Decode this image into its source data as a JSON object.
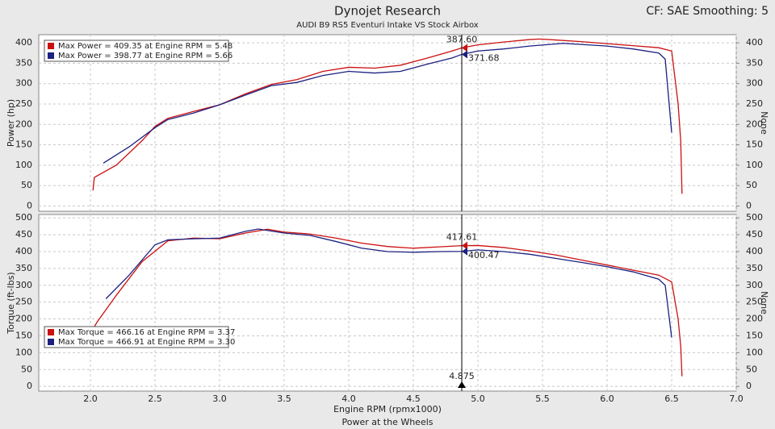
{
  "header": {
    "title": "Dynojet Research",
    "subtitle": "AUDI B9 RS5 Eventuri Intake VS Stock Airbox",
    "corner": "CF: SAE Smoothing: 5"
  },
  "x_label": "Engine RPM (rpmx1000)",
  "footer": "Power at the Wheels",
  "cursor_x": {
    "value": 4.875,
    "label": "4.875"
  },
  "chart_data": [
    {
      "type": "line",
      "ylabel": "Power (hp)",
      "y2label": "None",
      "legend": "upper left",
      "ylim": [
        -13,
        420
      ],
      "yticks": [
        0,
        50,
        100,
        150,
        200,
        250,
        300,
        350,
        400
      ],
      "y2lim": [
        -13,
        420
      ],
      "y2ticks": [
        0,
        50,
        100,
        150,
        200,
        250,
        300,
        350,
        400
      ],
      "grid": true,
      "series": [
        {
          "name": "Max Power = 409.35 at Engine RPM = 5.48",
          "color": "#cc1010",
          "x": [
            2.02,
            2.03,
            2.2,
            2.4,
            2.5,
            2.6,
            2.8,
            3.0,
            3.2,
            3.4,
            3.6,
            3.8,
            4.0,
            4.2,
            4.4,
            4.6,
            4.8,
            4.875,
            5.0,
            5.2,
            5.4,
            5.48,
            5.6,
            5.8,
            6.0,
            6.2,
            6.4,
            6.5,
            6.55,
            6.57,
            6.58
          ],
          "values": [
            38,
            70,
            100,
            160,
            195,
            215,
            232,
            248,
            275,
            298,
            310,
            330,
            340,
            338,
            345,
            362,
            380,
            387.6,
            395,
            402,
            408,
            409.35,
            407,
            403,
            398,
            393,
            388,
            380,
            250,
            160,
            30
          ]
        },
        {
          "name": "Max Power = 398.77 at Engine RPM = 5.66",
          "color": "#1c2080",
          "x": [
            2.1,
            2.3,
            2.5,
            2.6,
            2.8,
            3.0,
            3.2,
            3.4,
            3.6,
            3.8,
            4.0,
            4.2,
            4.4,
            4.6,
            4.8,
            4.875,
            5.0,
            5.2,
            5.4,
            5.66,
            5.8,
            6.0,
            6.2,
            6.4,
            6.45,
            6.5
          ],
          "values": [
            105,
            145,
            192,
            212,
            228,
            248,
            272,
            295,
            303,
            320,
            330,
            326,
            330,
            347,
            363,
            371.68,
            380,
            385,
            392,
            398.77,
            396,
            392,
            385,
            375,
            360,
            180
          ]
        }
      ],
      "cursor": [
        {
          "value": 387.6,
          "label": "387.60"
        },
        {
          "value": 371.68,
          "label": "371.68"
        }
      ]
    },
    {
      "type": "line",
      "ylabel": "Torque (ft-lbs)",
      "y2label": "None",
      "legend": "lower left",
      "xlim": [
        1.6,
        7.0
      ],
      "xticks": [
        {
          "value": 2,
          "label": "2.0"
        },
        {
          "value": 2.5,
          "label": "2.5"
        },
        {
          "value": 3,
          "label": "3.0"
        },
        {
          "value": 3.5,
          "label": "3.5"
        },
        {
          "value": 4,
          "label": "4.0"
        },
        {
          "value": 4.5,
          "label": "4.5"
        },
        {
          "value": 5,
          "label": "5.0"
        },
        {
          "value": 5.5,
          "label": "5.5"
        },
        {
          "value": 6,
          "label": "6.0"
        },
        {
          "value": 6.5,
          "label": "6.5"
        },
        {
          "value": 7,
          "label": "7.0"
        }
      ],
      "ylim": [
        -14,
        510
      ],
      "yticks": [
        0,
        50,
        100,
        150,
        200,
        250,
        300,
        350,
        400,
        450,
        500
      ],
      "y2lim": [
        -14,
        510
      ],
      "y2ticks": [
        0,
        50,
        100,
        150,
        200,
        250,
        300,
        350,
        400,
        450,
        500
      ],
      "grid": true,
      "series": [
        {
          "name": "Max Torque = 466.16 at Engine RPM = 3.37",
          "color": "#cc1010",
          "x": [
            2.02,
            2.05,
            2.2,
            2.4,
            2.6,
            2.8,
            3.0,
            3.2,
            3.37,
            3.5,
            3.7,
            3.9,
            4.1,
            4.3,
            4.5,
            4.7,
            4.875,
            5.0,
            5.2,
            5.4,
            5.6,
            5.8,
            6.0,
            6.2,
            6.4,
            6.5,
            6.55,
            6.57,
            6.58
          ],
          "values": [
            170,
            190,
            270,
            370,
            432,
            440,
            438,
            455,
            466.16,
            458,
            452,
            440,
            425,
            415,
            410,
            414,
            417.61,
            418,
            412,
            402,
            390,
            375,
            360,
            345,
            330,
            310,
            200,
            120,
            30
          ]
        },
        {
          "name": "Max Torque = 466.91 at Engine RPM = 3.30",
          "color": "#1c2080",
          "x": [
            2.12,
            2.3,
            2.5,
            2.6,
            2.8,
            3.0,
            3.2,
            3.3,
            3.5,
            3.7,
            3.9,
            4.1,
            4.3,
            4.5,
            4.7,
            4.875,
            5.0,
            5.2,
            5.4,
            5.6,
            5.8,
            6.0,
            6.2,
            6.4,
            6.45,
            6.5
          ],
          "values": [
            260,
            330,
            420,
            435,
            438,
            440,
            460,
            466.91,
            455,
            448,
            430,
            410,
            400,
            398,
            400,
            400.47,
            405,
            400,
            392,
            380,
            368,
            355,
            340,
            318,
            300,
            145
          ]
        }
      ],
      "cursor": [
        {
          "value": 417.61,
          "label": "417.61"
        },
        {
          "value": 400.47,
          "label": "400.47"
        }
      ]
    }
  ]
}
